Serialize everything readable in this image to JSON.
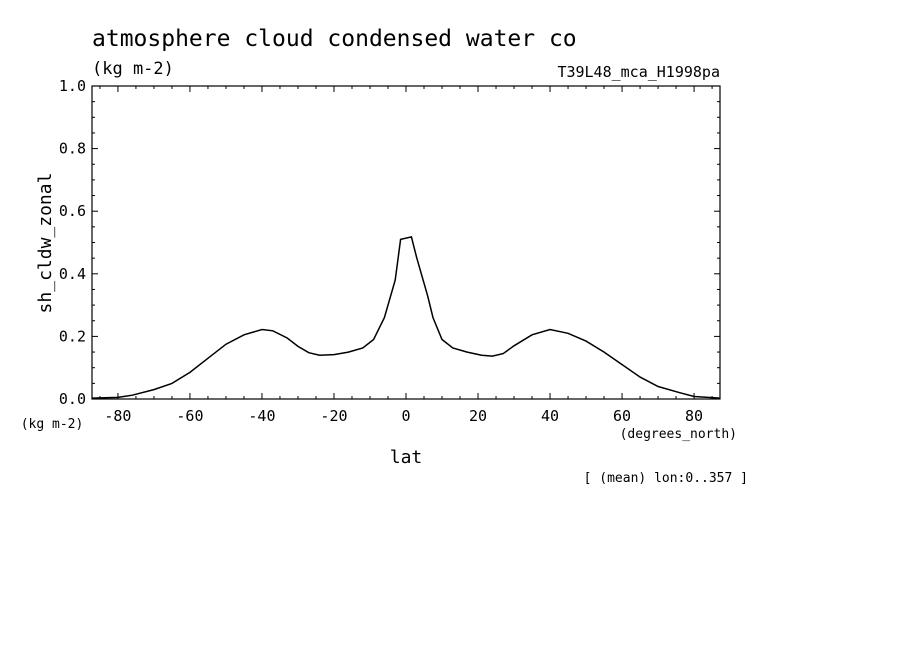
{
  "chart_data": {
    "type": "line",
    "title": "atmosphere cloud condensed water co",
    "units": "(kg m-2)",
    "run_id": "T39L48_mca_H1998pa",
    "xlabel": "lat",
    "xunits": "(degrees_north)",
    "ylabel": "sh_cldw_zonal",
    "yunits": "(kg m-2)",
    "footnote": "[ (mean) lon:0..357 ]",
    "xlim": [
      -87.2,
      87.2
    ],
    "ylim": [
      0,
      1.0
    ],
    "x_ticks": [
      "-80",
      "-60",
      "-40",
      "-20",
      "0",
      "20",
      "40",
      "60",
      "80"
    ],
    "y_ticks": [
      "0.0",
      "0.2",
      "0.4",
      "0.6",
      "0.8",
      "1.0"
    ],
    "series": [
      {
        "x": [
          -87.2,
          -80,
          -76,
          -70,
          -65,
          -60,
          -55,
          -50,
          -45,
          -40,
          -37,
          -33,
          -30,
          -27,
          -24,
          -20,
          -16,
          -12,
          -9,
          -6,
          -3,
          -1.5,
          1.5,
          3,
          6,
          7.5,
          10,
          13,
          17,
          21,
          24,
          27,
          30,
          35,
          40,
          45,
          50,
          55,
          60,
          65,
          70,
          76,
          80,
          87.2
        ],
        "y": [
          0.003,
          0.005,
          0.012,
          0.03,
          0.05,
          0.085,
          0.13,
          0.175,
          0.205,
          0.222,
          0.218,
          0.195,
          0.168,
          0.148,
          0.14,
          0.142,
          0.15,
          0.163,
          0.19,
          0.26,
          0.38,
          0.51,
          0.518,
          0.45,
          0.33,
          0.26,
          0.19,
          0.163,
          0.15,
          0.14,
          0.137,
          0.145,
          0.17,
          0.205,
          0.222,
          0.21,
          0.185,
          0.15,
          0.11,
          0.07,
          0.04,
          0.02,
          0.008,
          0.003
        ]
      }
    ]
  }
}
